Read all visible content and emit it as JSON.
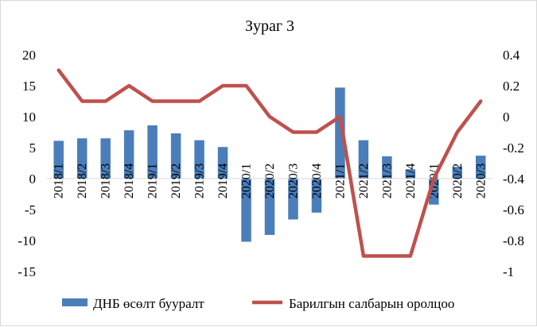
{
  "chart_data": {
    "type": "bar+line",
    "title": "Зураг 3",
    "categories": [
      "2018/1",
      "2018/2",
      "2018/3",
      "2018/4",
      "2019/1",
      "2019/2",
      "2019/3",
      "2019/4",
      "2020/1",
      "2020/2",
      "2020/3",
      "2020/4",
      "2021/1",
      "2021/2",
      "2021/3",
      "2021/4",
      "2020/1",
      "2020/2",
      "2020/3"
    ],
    "series": [
      {
        "name": "ДНБ өсөлт бууралт",
        "kind": "bar",
        "axis": "left",
        "color": "#4a7ebb",
        "values": [
          6.1,
          6.5,
          6.5,
          7.8,
          8.6,
          7.3,
          6.2,
          5.1,
          -10.2,
          -9.1,
          -6.6,
          -5.5,
          14.7,
          6.2,
          3.6,
          1.5,
          -4.2,
          1.9,
          3.7
        ]
      },
      {
        "name": "Барилгын салбарын оролцоо",
        "kind": "line",
        "axis": "right",
        "color": "#c0504d",
        "values": [
          0.3,
          0.1,
          0.1,
          0.2,
          0.1,
          0.1,
          0.1,
          0.2,
          0.2,
          0.0,
          -0.1,
          -0.1,
          0.0,
          -0.9,
          -0.9,
          -0.9,
          -0.4,
          -0.1,
          0.1
        ]
      }
    ],
    "left_axis": {
      "min": -15,
      "max": 20,
      "step": 5,
      "ticks": [
        "-15",
        "-10",
        "-5",
        "0",
        "5",
        "10",
        "15",
        "20"
      ]
    },
    "right_axis": {
      "min": -1,
      "max": 0.4,
      "step": 0.2,
      "ticks": [
        "-1",
        "-0.8",
        "-0.6",
        "-0.4",
        "-0.2",
        "0",
        "0.2",
        "0.4"
      ]
    },
    "grid": false,
    "legend_position": "bottom"
  }
}
